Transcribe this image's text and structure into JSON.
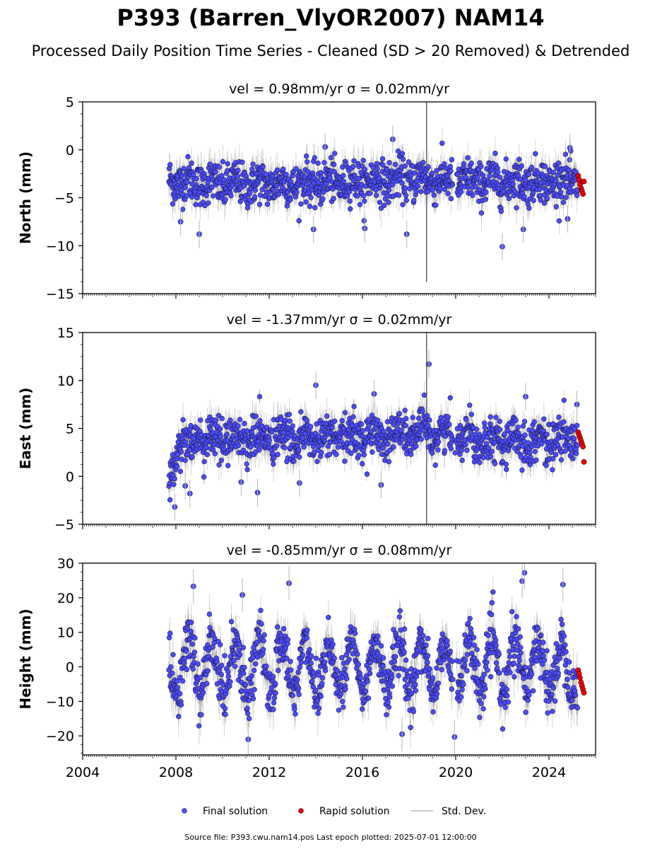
{
  "title": "P393 (Barren_VlyOR2007) NAM14",
  "subtitle": "Processed Daily Position Time Series - Cleaned (SD > 20 Removed) & Detrended",
  "footer": "Source file: P393.cwu.nam14.pos  Last epoch plotted: 2025-07-01 12:00:00",
  "legend": {
    "final": "Final solution",
    "rapid": "Rapid solution",
    "std": "Std. Dev."
  },
  "colors": {
    "final": "#4b4bff",
    "rapid": "#ee0000",
    "std": "#b5b5b5"
  },
  "chart_data": [
    {
      "type": "scatter",
      "title": "vel = 0.98mm/yr   σ = 0.02mm/yr",
      "ylabel": "North (mm)",
      "ylim": [
        -15,
        5
      ],
      "yticks": [
        5,
        0,
        -5,
        -10,
        -15
      ],
      "xlim": [
        2004,
        2026
      ],
      "xticks": [],
      "start": 2007.7,
      "end_final": 2025.22,
      "rapid_range": [
        2025.25,
        2025.5
      ],
      "baseline": [
        [
          2007.7,
          -3.2
        ],
        [
          2010,
          -3.6
        ],
        [
          2014,
          -3.5
        ],
        [
          2018.5,
          -3.0
        ],
        [
          2020,
          -3.3
        ],
        [
          2025.5,
          -3.3
        ]
      ],
      "noise": 1.1,
      "seasonal": 0.4,
      "outliers": [
        {
          "x": 2014.4,
          "y": 0.3
        },
        {
          "x": 2017.3,
          "y": 1.1
        },
        {
          "x": 2024.9,
          "y": 0.2
        },
        {
          "x": 2009.0,
          "y": -8.8
        },
        {
          "x": 2013.9,
          "y": -8.3
        },
        {
          "x": 2016.1,
          "y": -8.2
        },
        {
          "x": 2017.9,
          "y": -8.8
        },
        {
          "x": 2022.0,
          "y": -10.1
        },
        {
          "x": 2022.9,
          "y": -8.3
        },
        {
          "x": 2024.8,
          "y": -7.2
        },
        {
          "x": 2008.2,
          "y": -7.5
        }
      ],
      "rapid_values": [
        -2.7,
        -3.1,
        -3.6,
        -4.0,
        -4.3,
        -4.6,
        -3.3
      ],
      "spike": {
        "x": 2018.75,
        "y1": -13.8,
        "y2": 5
      }
    },
    {
      "type": "scatter",
      "title": "vel = -1.37mm/yr   σ = 0.02mm/yr",
      "ylabel": "East (mm)",
      "ylim": [
        -5,
        15
      ],
      "yticks": [
        15,
        10,
        5,
        0,
        -5
      ],
      "xlim": [
        2004,
        2026
      ],
      "xticks": [],
      "start": 2007.7,
      "end_final": 2025.22,
      "rapid_range": [
        2025.25,
        2025.5
      ],
      "baseline": [
        [
          2007.7,
          -0.5
        ],
        [
          2007.9,
          1.0
        ],
        [
          2008.15,
          3.5
        ],
        [
          2010,
          4.0
        ],
        [
          2014,
          3.9
        ],
        [
          2018.5,
          4.5
        ],
        [
          2020,
          4.4
        ],
        [
          2022,
          3.7
        ],
        [
          2025.5,
          3.8
        ]
      ],
      "noise": 1.1,
      "seasonal": 0.5,
      "outliers": [
        {
          "x": 2018.85,
          "y": 11.7
        },
        {
          "x": 2014.0,
          "y": 9.5
        },
        {
          "x": 2023.0,
          "y": 8.3
        },
        {
          "x": 2016.5,
          "y": 8.6
        },
        {
          "x": 2007.95,
          "y": -3.2
        },
        {
          "x": 2008.6,
          "y": -1.8
        },
        {
          "x": 2011.5,
          "y": -1.7
        },
        {
          "x": 2013.3,
          "y": -0.7
        },
        {
          "x": 2016.8,
          "y": -0.9
        },
        {
          "x": 2010.8,
          "y": -0.6
        },
        {
          "x": 2008.4,
          "y": -1.0
        },
        {
          "x": 2025.2,
          "y": 7.5
        }
      ],
      "rapid_values": [
        4.6,
        4.3,
        4.0,
        3.7,
        3.4,
        3.1,
        1.5
      ],
      "spike": {
        "x": 2018.75,
        "y1": -5,
        "y2": 15
      }
    },
    {
      "type": "scatter",
      "title": "vel = -0.85mm/yr   σ = 0.08mm/yr",
      "ylabel": "Height (mm)",
      "ylim": [
        -25.5,
        30
      ],
      "yticks": [
        30,
        20,
        10,
        0,
        -10,
        -20
      ],
      "xlim": [
        2004,
        2026
      ],
      "xticks": [
        "2004",
        "2008",
        "2012",
        "2016",
        "2020",
        "2024"
      ],
      "xtick_values": [
        2004,
        2008,
        2012,
        2016,
        2020,
        2024
      ],
      "start": 2007.7,
      "end_final": 2025.22,
      "rapid_range": [
        2025.25,
        2025.5
      ],
      "baseline": [
        [
          2007.7,
          0
        ],
        [
          2025.5,
          0
        ]
      ],
      "noise": 3.8,
      "seasonal": 7.5,
      "outliers": [
        {
          "x": 2022.95,
          "y": 27.2
        },
        {
          "x": 2022.85,
          "y": 24.8
        },
        {
          "x": 2012.85,
          "y": 24.2
        },
        {
          "x": 2024.6,
          "y": 23.8
        },
        {
          "x": 2008.75,
          "y": 23.3
        },
        {
          "x": 2010.85,
          "y": 20.8
        },
        {
          "x": 2011.1,
          "y": -21.0
        },
        {
          "x": 2019.95,
          "y": -20.3
        },
        {
          "x": 2017.7,
          "y": -19.5
        }
      ],
      "rapid_values": [
        -1.0,
        -2.0,
        -3.2,
        -4.5,
        -5.5,
        -6.5,
        -7.5
      ],
      "spike": null
    }
  ]
}
